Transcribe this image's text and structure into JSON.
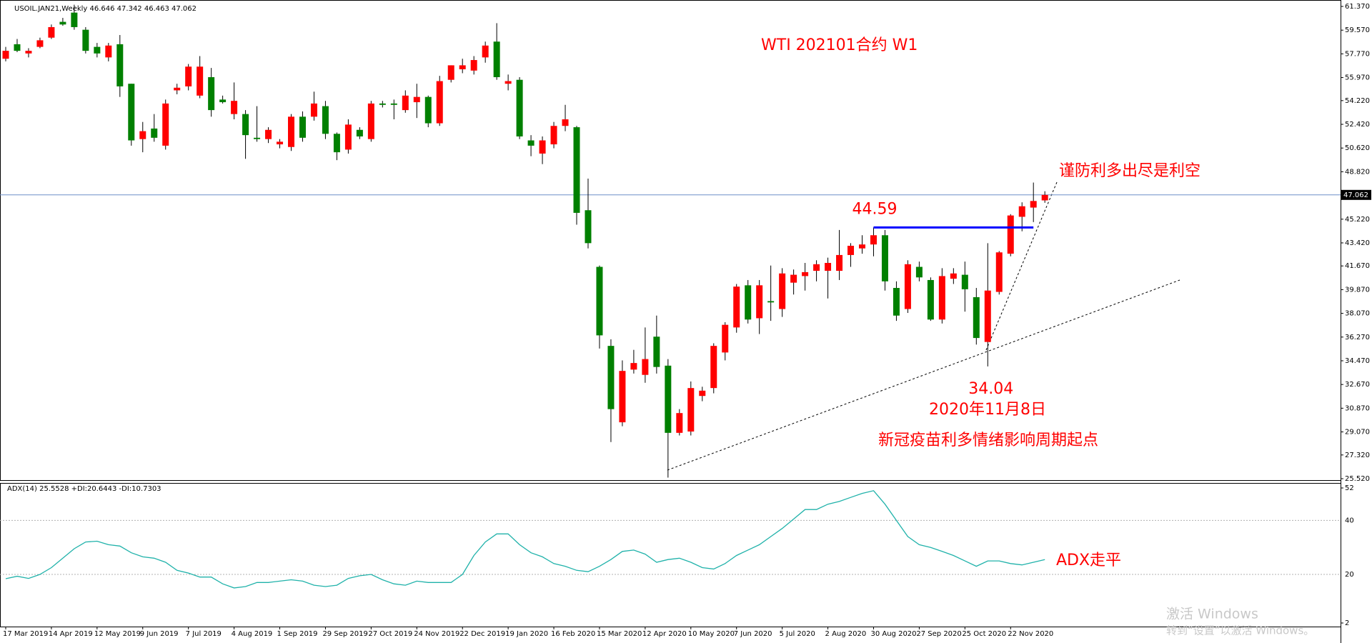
{
  "chart_data": [
    {
      "type": "candlestick",
      "header": "USOIL.JAN21,Weekly  46.646 47.342 46.463 47.062",
      "title": "WTI 202101合约 W1",
      "annotations": [
        "谨防利多出尽是利空",
        "2020年11月8日",
        "新冠疫苗利多情绪影响周期起点"
      ],
      "up_color": "#ff0000",
      "down_color": "#008000",
      "categories": [
        "17 Mar 2019",
        null,
        null,
        null,
        "14 Apr 2019",
        null,
        null,
        null,
        "12 May 2019",
        null,
        null,
        null,
        "9 Jun 2019",
        null,
        null,
        null,
        "7 Jul 2019",
        null,
        null,
        null,
        "4 Aug 2019",
        null,
        null,
        null,
        "1 Sep 2019",
        null,
        null,
        null,
        "29 Sep 2019",
        null,
        null,
        null,
        "27 Oct 2019",
        null,
        null,
        null,
        "24 Nov 2019",
        null,
        null,
        null,
        "22 Dec 2019",
        null,
        null,
        null,
        "19 Jan 2020",
        null,
        null,
        null,
        "16 Feb 2020",
        null,
        null,
        null,
        "15 Mar 2020",
        null,
        null,
        null,
        "12 Apr 2020",
        null,
        null,
        null,
        "10 May 2020",
        null,
        null,
        null,
        "7 Jun 2020",
        null,
        null,
        null,
        "5 Jul 2020",
        null,
        null,
        null,
        "2 Aug 2020",
        null,
        null,
        null,
        "30 Aug 2020",
        null,
        null,
        null,
        "27 Sep 2020",
        null,
        null,
        null,
        "25 Oct 2020",
        null,
        null,
        null,
        "22 Nov 2020",
        null,
        null,
        null
      ],
      "open": [
        57.4,
        58.5,
        57.8,
        58.3,
        59.0,
        60.2,
        60.9,
        59.6,
        58.3,
        57.5,
        58.5,
        55.5,
        51.3,
        52.1,
        50.8,
        55.0,
        55.3,
        54.6,
        56.0,
        54.3,
        53.2,
        53.2,
        51.4,
        51.3,
        50.9,
        50.7,
        53.0,
        53.0,
        53.8,
        51.7,
        50.5,
        52.0,
        51.3,
        54.0,
        54.0,
        53.5,
        54.1,
        54.5,
        52.5,
        55.8,
        56.6,
        56.5,
        57.5,
        58.7,
        55.5,
        55.8,
        51.2,
        50.2,
        50.9,
        52.3,
        52.2,
        45.9,
        41.6,
        35.6,
        29.8,
        33.8,
        33.4,
        36.3,
        34.1,
        29.0,
        29.1,
        31.8,
        32.4,
        35.1,
        37.0,
        40.2,
        37.7,
        39.0,
        38.4,
        40.4,
        40.9,
        41.3,
        41.3,
        41.3,
        42.5,
        43.0,
        43.3,
        44.0,
        40.0,
        38.4,
        41.6,
        40.6,
        37.6,
        40.7,
        41.0,
        39.3,
        35.9,
        39.7,
        42.6,
        45.4,
        46.1,
        46.646
      ],
      "high": [
        58.3,
        58.9,
        58.2,
        59.0,
        60.0,
        60.5,
        61.5,
        59.8,
        58.6,
        58.6,
        59.2,
        55.5,
        52.6,
        53.2,
        54.3,
        55.5,
        57.0,
        57.6,
        56.7,
        54.6,
        55.6,
        53.5,
        53.8,
        52.2,
        51.3,
        53.2,
        53.4,
        54.9,
        54.2,
        51.8,
        52.8,
        52.2,
        54.2,
        54.2,
        54.3,
        55.0,
        55.5,
        54.6,
        56.1,
        56.9,
        57.4,
        57.6,
        58.7,
        60.1,
        56.2,
        56.0,
        51.6,
        51.5,
        52.6,
        53.9,
        52.3,
        48.3,
        41.7,
        36.1,
        34.5,
        35.3,
        37.0,
        37.9,
        34.6,
        30.8,
        32.9,
        32.5,
        35.8,
        37.4,
        40.3,
        40.6,
        40.6,
        41.7,
        41.5,
        41.4,
        41.9,
        42.1,
        42.3,
        44.4,
        43.4,
        44.0,
        44.59,
        44.4,
        40.5,
        42.1,
        42.0,
        40.8,
        41.5,
        41.5,
        42.0,
        40.0,
        43.4,
        42.8,
        45.6,
        46.5,
        48.0,
        47.342
      ],
      "low": [
        57.2,
        57.9,
        57.5,
        58.2,
        58.9,
        59.9,
        59.6,
        57.8,
        57.5,
        57.2,
        54.5,
        50.8,
        50.3,
        51.1,
        50.5,
        54.7,
        55.0,
        54.4,
        53.0,
        54.0,
        52.8,
        49.8,
        51.1,
        51.0,
        50.6,
        50.4,
        51.1,
        52.7,
        51.3,
        49.7,
        50.2,
        51.3,
        51.1,
        53.7,
        52.8,
        53.3,
        52.9,
        52.2,
        52.3,
        55.6,
        56.3,
        56.2,
        57.1,
        55.8,
        55.0,
        51.3,
        50.0,
        49.4,
        50.6,
        51.9,
        44.8,
        43.0,
        35.4,
        28.3,
        29.5,
        33.5,
        32.8,
        33.5,
        25.6,
        28.8,
        28.8,
        31.4,
        32.0,
        34.5,
        36.6,
        37.3,
        36.5,
        37.5,
        37.8,
        39.5,
        39.8,
        40.5,
        39.2,
        40.6,
        41.6,
        42.6,
        42.4,
        39.8,
        37.5,
        38.1,
        40.5,
        37.5,
        37.3,
        40.3,
        38.2,
        35.7,
        34.04,
        39.5,
        42.4,
        44.3,
        45.0,
        46.463
      ],
      "close": [
        58.0,
        58.0,
        58.0,
        58.8,
        59.8,
        60.0,
        59.8,
        58.0,
        57.8,
        58.4,
        55.3,
        51.2,
        51.9,
        51.4,
        54.0,
        55.2,
        56.8,
        56.8,
        53.5,
        54.1,
        54.2,
        51.6,
        51.3,
        52.0,
        51.1,
        53.0,
        51.4,
        54.0,
        51.7,
        50.3,
        52.4,
        51.5,
        54.0,
        53.9,
        53.9,
        54.6,
        54.5,
        52.5,
        55.7,
        56.9,
        56.9,
        57.3,
        58.4,
        56.0,
        55.7,
        51.5,
        50.8,
        51.2,
        52.3,
        52.8,
        45.7,
        43.4,
        36.4,
        30.8,
        33.7,
        34.3,
        34.6,
        34.0,
        29.0,
        30.5,
        32.4,
        32.2,
        35.6,
        37.2,
        40.1,
        37.6,
        40.2,
        38.9,
        41.1,
        41.0,
        41.2,
        41.8,
        41.9,
        42.5,
        43.2,
        43.3,
        44.0,
        40.5,
        37.9,
        41.8,
        40.8,
        37.6,
        40.9,
        41.1,
        39.9,
        36.2,
        39.8,
        42.7,
        45.5,
        46.2,
        46.6,
        47.062
      ],
      "last_price": 47.062,
      "ylim": [
        25.52,
        61.37
      ],
      "yticks": [
        {
          "value": 61.37,
          "label": "61.370"
        },
        {
          "value": 59.57,
          "label": "59.570"
        },
        {
          "value": 57.77,
          "label": "57.770"
        },
        {
          "value": 55.97,
          "label": "55.970"
        },
        {
          "value": 54.22,
          "label": "54.220"
        },
        {
          "value": 52.42,
          "label": "52.420"
        },
        {
          "value": 50.62,
          "label": "50.620"
        },
        {
          "value": 48.82,
          "label": "48.820"
        },
        {
          "value": 45.22,
          "label": "45.220"
        },
        {
          "value": 43.42,
          "label": "43.420"
        },
        {
          "value": 41.67,
          "label": "41.670"
        },
        {
          "value": 39.87,
          "label": "39.870"
        },
        {
          "value": 38.07,
          "label": "38.070"
        },
        {
          "value": 36.27,
          "label": "36.270"
        },
        {
          "value": 34.47,
          "label": "34.470"
        },
        {
          "value": 32.67,
          "label": "32.670"
        },
        {
          "value": 30.87,
          "label": "30.870"
        },
        {
          "value": 29.07,
          "label": "29.070"
        },
        {
          "value": 27.32,
          "label": "27.320"
        },
        {
          "value": 25.52,
          "label": "25.520"
        }
      ]
    },
    {
      "type": "line",
      "header": "ADX(14) 25.5528 +DI:20.6443 -DI:10.7303",
      "annotation": "ADX走平",
      "color": "#20b2aa",
      "values": [
        18.4,
        19.3,
        18.5,
        20,
        22.5,
        26,
        29.5,
        32,
        32.3,
        31,
        30.5,
        28,
        26.5,
        26,
        24.5,
        21.5,
        20.5,
        19,
        19,
        16.5,
        15,
        15.5,
        17,
        17,
        17.5,
        18,
        17.5,
        16,
        15.5,
        16,
        18.5,
        19.5,
        20,
        18,
        16.5,
        16,
        17.5,
        17,
        17,
        17,
        20,
        27,
        32,
        35,
        35,
        31,
        28,
        26.5,
        24,
        23,
        21.5,
        21,
        23,
        25.5,
        28.5,
        29,
        27.5,
        24.5,
        25.5,
        26,
        24.5,
        22.5,
        22,
        24,
        27,
        29,
        31,
        34,
        37,
        40.5,
        44,
        44,
        46,
        47,
        48.5,
        50,
        51,
        46,
        40,
        34,
        31,
        30,
        28.5,
        27,
        25,
        23,
        25,
        25,
        24,
        23.5,
        24.5,
        25.5
      ],
      "ylim": [
        2,
        52
      ],
      "yticks": [
        52,
        40,
        20,
        2
      ]
    }
  ],
  "watermark": {
    "line1": "激活 Windows",
    "line2": "转到“设置”以激活 Windows。"
  }
}
